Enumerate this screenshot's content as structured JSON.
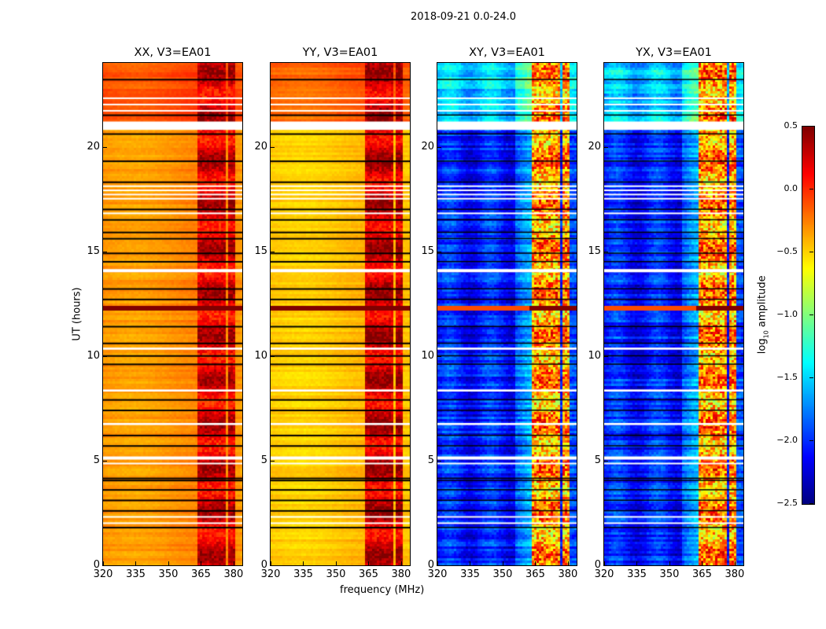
{
  "chart_data": {
    "type": "heatmap",
    "suptitle": "2018-09-21 0.0-24.0",
    "xlabel": "frequency (MHz)",
    "ylabel": "UT (hours)",
    "xlim": [
      320,
      384
    ],
    "ylim": [
      0,
      24
    ],
    "xticks": [
      320,
      335,
      350,
      365,
      380
    ],
    "yticks": [
      0,
      5,
      10,
      15,
      20
    ],
    "panels": [
      {
        "title": "XX, V3=EA01",
        "base": -0.3,
        "base_late": -0.1,
        "band": 0.15
      },
      {
        "title": "YY, V3=EA01",
        "base": -0.45,
        "base_late": -0.15,
        "band": 0.2
      },
      {
        "title": "XY, V3=EA01",
        "base": -2.05,
        "base_late": -1.55,
        "band": -0.5
      },
      {
        "title": "YX, V3=EA01",
        "base": -2.05,
        "base_late": -1.55,
        "band": -0.5
      }
    ],
    "bright_band_MHz": [
      [
        363,
        367
      ],
      [
        367.5,
        371.5
      ],
      [
        372,
        376
      ],
      [
        376.5,
        380.5
      ]
    ],
    "strong_rfi_hours": [
      12.2,
      12.5
    ],
    "flagged_hours": [
      [
        20.8,
        21.2
      ],
      [
        22.3,
        22.35
      ],
      [
        22.0,
        22.05
      ],
      [
        21.7,
        21.75
      ],
      [
        18.1,
        18.15
      ],
      [
        17.9,
        17.95
      ],
      [
        17.7,
        17.75
      ],
      [
        17.5,
        17.55
      ],
      [
        16.8,
        16.85
      ],
      [
        14.0,
        14.15
      ],
      [
        10.3,
        10.4
      ],
      [
        8.3,
        8.4
      ],
      [
        6.7,
        6.8
      ],
      [
        5.05,
        5.2
      ],
      [
        4.85,
        4.9
      ],
      [
        2.3,
        2.35
      ],
      [
        2.0,
        2.05
      ]
    ],
    "black_line_hours": [
      23.2,
      21.5,
      20.6,
      19.3,
      18.3,
      17.0,
      16.5,
      15.9,
      15.6,
      14.9,
      14.5,
      13.2,
      12.7,
      11.4,
      10.6,
      10.0,
      9.6,
      7.9,
      7.4,
      6.2,
      5.7,
      4.05,
      4.15,
      3.6,
      3.1,
      2.6,
      1.8
    ],
    "colorbar": {
      "label": "log10 amplitude",
      "label_main": "log",
      "label_sub": "10",
      "label_rest": " amplitude",
      "range": [
        -2.5,
        0.5
      ],
      "ticks": [
        "0.5",
        "0.0",
        "−0.5",
        "−1.0",
        "−1.5",
        "−2.0",
        "−2.5"
      ],
      "tick_values": [
        0.5,
        0.0,
        -0.5,
        -1.0,
        -1.5,
        -2.0,
        -2.5
      ],
      "colormap": "jet"
    }
  }
}
